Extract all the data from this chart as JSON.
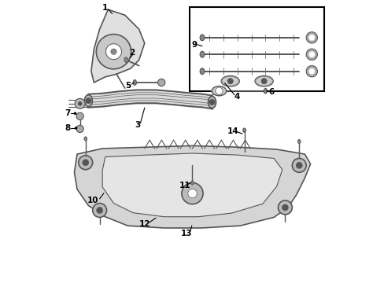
{
  "background_color": "#ffffff",
  "line_color": "#555555",
  "text_color": "#000000",
  "lw_main": 1.2,
  "lw_thin": 0.7
}
